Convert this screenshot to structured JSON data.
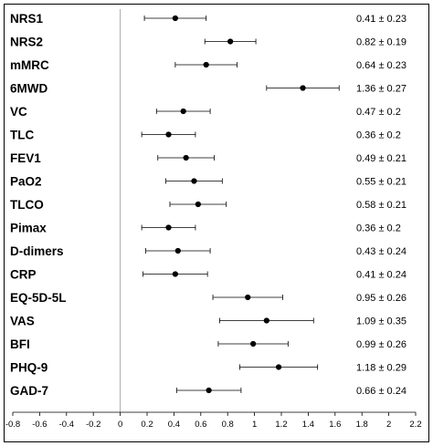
{
  "chart_data": {
    "type": "forest",
    "xlim": [
      -0.8,
      2.2
    ],
    "x_ticks": [
      -0.8,
      -0.6,
      -0.4,
      -0.2,
      0,
      0.2,
      0.4,
      0.6,
      0.8,
      1,
      1.2,
      1.4,
      1.6,
      1.8,
      2,
      2.2
    ],
    "x_tick_labels": [
      "-0.8",
      "-0.6",
      "-0.4",
      "-0.2",
      "0",
      "0.2",
      "0.4",
      "0.6",
      "0.8",
      "1",
      "1.2",
      "1.4",
      "1.6",
      "1.8",
      "2",
      "2.2"
    ],
    "reference_line": 0,
    "rows": [
      {
        "label": "NRS1",
        "mean": 0.41,
        "sd": 0.23,
        "text": "0.41 ± 0.23"
      },
      {
        "label": "NRS2",
        "mean": 0.82,
        "sd": 0.19,
        "text": "0.82 ± 0.19"
      },
      {
        "label": "mMRC",
        "mean": 0.64,
        "sd": 0.23,
        "text": "0.64 ± 0.23"
      },
      {
        "label": "6MWD",
        "mean": 1.36,
        "sd": 0.27,
        "text": "1.36 ± 0.27"
      },
      {
        "label": "VC",
        "mean": 0.47,
        "sd": 0.2,
        "text": "0.47 ± 0.2"
      },
      {
        "label": "TLC",
        "mean": 0.36,
        "sd": 0.2,
        "text": "0.36 ± 0.2"
      },
      {
        "label": "FEV1",
        "mean": 0.49,
        "sd": 0.21,
        "text": "0.49 ± 0.21"
      },
      {
        "label": "PaO2",
        "mean": 0.55,
        "sd": 0.21,
        "text": "0.55 ± 0.21"
      },
      {
        "label": "TLCO",
        "mean": 0.58,
        "sd": 0.21,
        "text": "0.58 ± 0.21"
      },
      {
        "label": "Pimax",
        "mean": 0.36,
        "sd": 0.2,
        "text": "0.36 ± 0.2"
      },
      {
        "label": "D-dimers",
        "mean": 0.43,
        "sd": 0.24,
        "text": "0.43 ± 0.24"
      },
      {
        "label": "CRP",
        "mean": 0.41,
        "sd": 0.24,
        "text": "0.41 ± 0.24"
      },
      {
        "label": "EQ-5D-5L",
        "mean": 0.95,
        "sd": 0.26,
        "text": "0.95 ± 0.26"
      },
      {
        "label": "VAS",
        "mean": 1.09,
        "sd": 0.35,
        "text": "1.09 ± 0.35"
      },
      {
        "label": "BFI",
        "mean": 0.99,
        "sd": 0.26,
        "text": "0.99 ± 0.26"
      },
      {
        "label": "PHQ-9",
        "mean": 1.18,
        "sd": 0.29,
        "text": "1.18 ± 0.29"
      },
      {
        "label": "GAD-7",
        "mean": 0.66,
        "sd": 0.24,
        "text": "0.66 ± 0.24"
      }
    ],
    "grid": false,
    "legend": false
  }
}
